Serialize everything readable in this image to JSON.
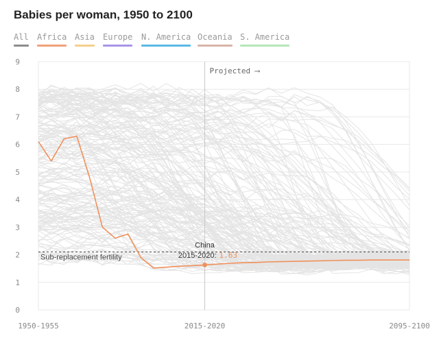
{
  "header": {
    "title": "Babies per woman, 1950 to 2100"
  },
  "filters": [
    {
      "label": "All",
      "color": "#8c8c8c"
    },
    {
      "label": "Africa",
      "color": "#f0a078"
    },
    {
      "label": "Asia",
      "color": "#f5cf8a"
    },
    {
      "label": "Europe",
      "color": "#a894e8"
    },
    {
      "label": "N. America",
      "color": "#5ab8e6"
    },
    {
      "label": "Oceania",
      "color": "#d9b4a8"
    },
    {
      "label": "S. America",
      "color": "#b4e6b8"
    }
  ],
  "colors": {
    "highlight": "#f0905a",
    "background_lines": "#e4e4e4",
    "grid": "#e8e8e8",
    "axis_text": "#888888"
  },
  "chart_data": {
    "type": "line",
    "title": "Babies per woman, 1950 to 2100",
    "x_ticks": [
      "1950-1955",
      "2015-2020",
      "2095-2100"
    ],
    "y_ticks": [
      "0",
      "1",
      "2",
      "3",
      "4",
      "5",
      "6",
      "7",
      "8",
      "9"
    ],
    "ylim": [
      0,
      9
    ],
    "grid": true,
    "x_periods_count": 30,
    "projection_start_period": "2015-2020",
    "projected_label": "Projected ⟶",
    "reference_line": {
      "value": 2.1,
      "label": "Sub-replacement fertility"
    },
    "highlight": {
      "name": "China",
      "callout_period": "2015-2020",
      "callout_text": "2015-2020:",
      "callout_value": "1.63",
      "periods": [
        "1950-1955",
        "1955-1960",
        "1960-1965",
        "1965-1970",
        "1970-1975",
        "1975-1980",
        "1980-1985",
        "1985-1990",
        "1990-1995",
        "1995-2000",
        "2000-2005",
        "2005-2010",
        "2010-2015",
        "2015-2020",
        "2020-2025",
        "2025-2030",
        "2030-2035",
        "2035-2040",
        "2040-2045",
        "2045-2050",
        "2050-2055",
        "2055-2060",
        "2060-2065",
        "2065-2070",
        "2070-2075",
        "2075-2080",
        "2080-2085",
        "2085-2090",
        "2090-2095",
        "2095-2100"
      ],
      "values": [
        6.1,
        5.4,
        6.2,
        6.3,
        4.8,
        3.0,
        2.6,
        2.75,
        1.9,
        1.52,
        1.55,
        1.58,
        1.6,
        1.63,
        1.66,
        1.69,
        1.71,
        1.72,
        1.74,
        1.75,
        1.76,
        1.77,
        1.78,
        1.79,
        1.8,
        1.8,
        1.81,
        1.81,
        1.81,
        1.81
      ]
    }
  }
}
